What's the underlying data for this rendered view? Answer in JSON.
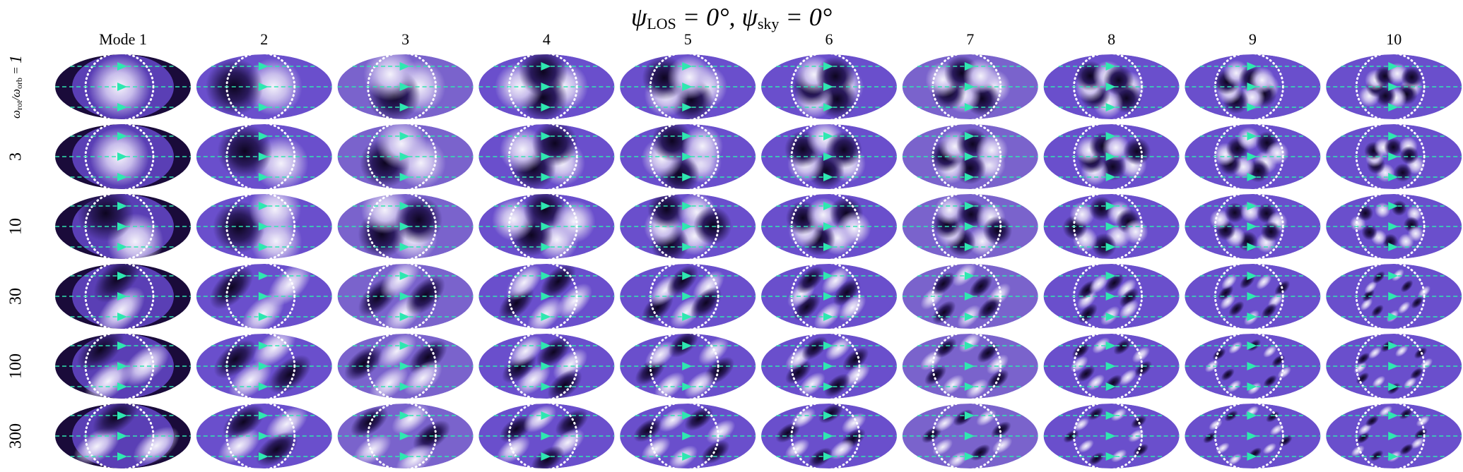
{
  "title_parts": [
    "ψ",
    "LOS",
    " = 0°, ψ",
    "sky",
    " = 0°"
  ],
  "columns": [
    "Mode 1",
    "2",
    "3",
    "4",
    "5",
    "6",
    "7",
    "8",
    "9",
    "10"
  ],
  "row_label_parts": [
    "ω",
    "rot",
    "/ω",
    "orb",
    " = "
  ],
  "rows": [
    "1",
    "3",
    "10",
    "30",
    "100",
    "300"
  ]
}
